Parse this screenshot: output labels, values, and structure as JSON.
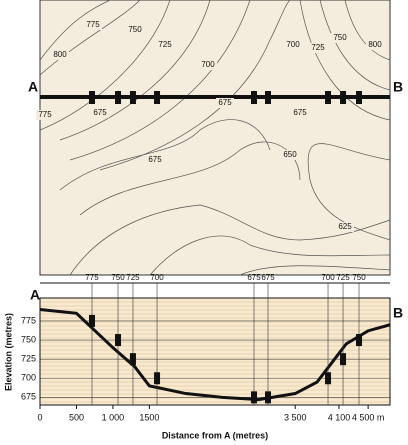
{
  "map": {
    "a_label": "A",
    "b_label": "B",
    "contour_labels": [
      800,
      775,
      750,
      725,
      700,
      700,
      725,
      750,
      800,
      775,
      675,
      675,
      675,
      650,
      675,
      625
    ]
  },
  "profile": {
    "a_label": "A",
    "b_label": "B",
    "y_label": "Elevation (metres)",
    "x_label": "Distance from A (metres)",
    "ylim": [
      665,
      805
    ],
    "yticks": [
      775,
      750,
      725,
      700,
      675
    ],
    "xlim": [
      0,
      4800
    ],
    "xticks": [
      0,
      500,
      {
        "value": 1000,
        "label": "1 000"
      },
      1500,
      {
        "value": 3500,
        "label": "3 500"
      },
      {
        "value": 4100,
        "label": "4 100"
      },
      {
        "value": 4500,
        "label": "4 500 m"
      }
    ],
    "distance": [
      0,
      500,
      1000,
      1300,
      1500,
      2000,
      2500,
      3000,
      3500,
      3800,
      4000,
      4200,
      4500,
      4800
    ],
    "elevation": [
      790,
      785,
      740,
      715,
      690,
      680,
      675,
      672,
      680,
      695,
      720,
      745,
      762,
      770
    ],
    "crossings": {
      "elevation": [
        775,
        750,
        725,
        700,
        675,
        675,
        700,
        725,
        750
      ],
      "distance": [
        713,
        1070,
        1275,
        1605,
        2935,
        3127,
        3950,
        4156,
        4375
      ]
    }
  }
}
